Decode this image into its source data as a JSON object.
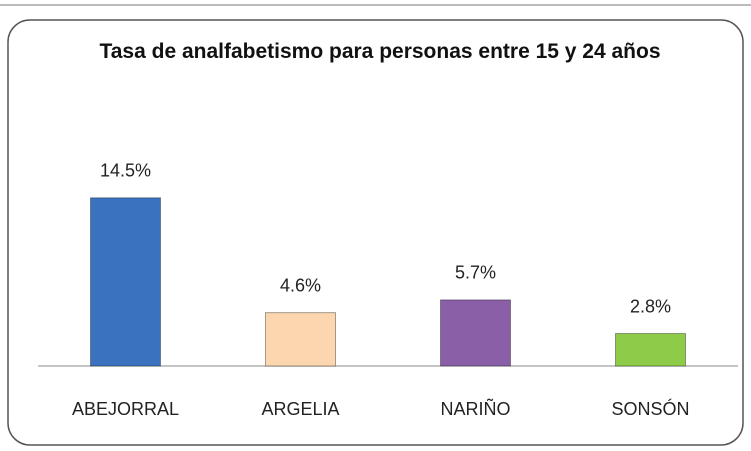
{
  "chart_data": {
    "type": "bar",
    "title": "Tasa de analfabetismo para personas entre 15 y 24 años",
    "categories": [
      "ABEJORRAL",
      "ARGELIA",
      "NARIÑO",
      "SONSÓN"
    ],
    "values": [
      14.5,
      4.6,
      5.7,
      2.8
    ],
    "value_labels": [
      "14.5%",
      "4.6%",
      "5.7%",
      "2.8%"
    ],
    "colors": [
      "#3b72c0",
      "#fbd6ae",
      "#8b5fa8",
      "#8ecb48"
    ]
  }
}
